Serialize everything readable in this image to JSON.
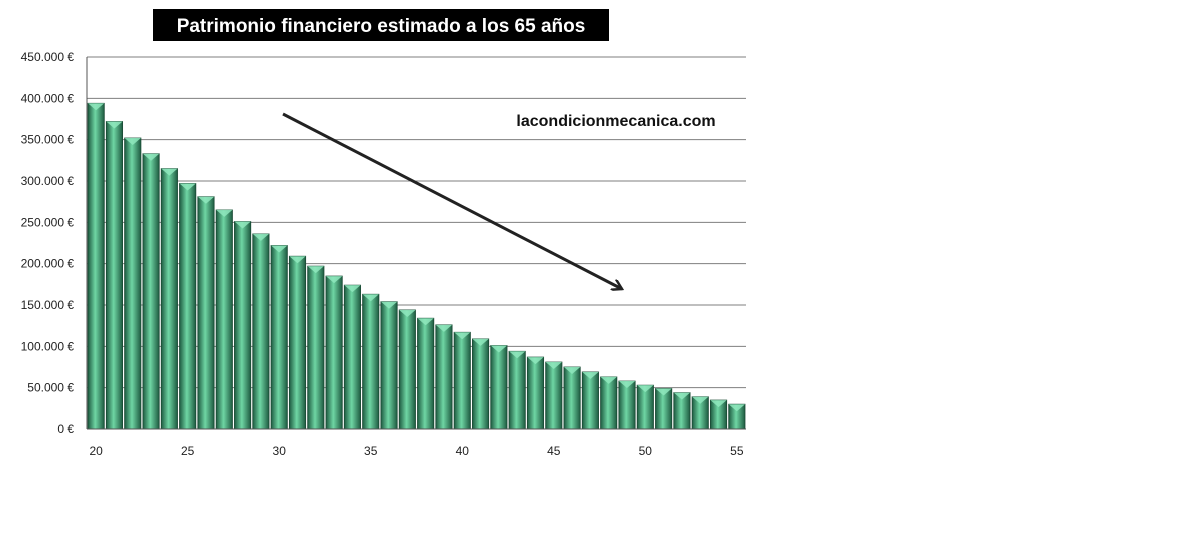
{
  "chart_data": {
    "type": "bar",
    "title": "Patrimonio financiero estimado a los 65 años",
    "watermark": "lacondicionmecanica.com",
    "categories": [
      20,
      21,
      22,
      23,
      24,
      25,
      26,
      27,
      28,
      29,
      30,
      31,
      32,
      33,
      34,
      35,
      36,
      37,
      38,
      39,
      40,
      41,
      42,
      43,
      44,
      45,
      46,
      47,
      48,
      49,
      50,
      51,
      52,
      53,
      54,
      55
    ],
    "values": [
      394000,
      372000,
      352000,
      333000,
      315000,
      297000,
      281000,
      265000,
      251000,
      236000,
      222000,
      209000,
      197000,
      185000,
      174000,
      163000,
      154000,
      144000,
      134000,
      126000,
      117000,
      109000,
      101000,
      94000,
      87000,
      81000,
      75000,
      69000,
      63000,
      58000,
      53000,
      49000,
      44000,
      39000,
      35000,
      30000
    ],
    "xtick_labels": [
      "20",
      "25",
      "30",
      "35",
      "40",
      "45",
      "50",
      "55"
    ],
    "ytick_labels": [
      "0 €",
      "50.000 €",
      "100.000 €",
      "150.000 €",
      "200.000 €",
      "250.000 €",
      "300.000 €",
      "350.000 €",
      "400.000 €",
      "450.000 €"
    ],
    "ylim": [
      0,
      450000
    ],
    "grid": true,
    "xlabel": "",
    "ylabel": "",
    "annotation": "downward arrow",
    "colors": {
      "bar": "#2e8b63",
      "bar_light": "#6fd6a4",
      "bar_dark": "#1d5a40",
      "grid": "#7f7f7f",
      "title_bg": "#000000",
      "arrow": "#222222"
    }
  }
}
